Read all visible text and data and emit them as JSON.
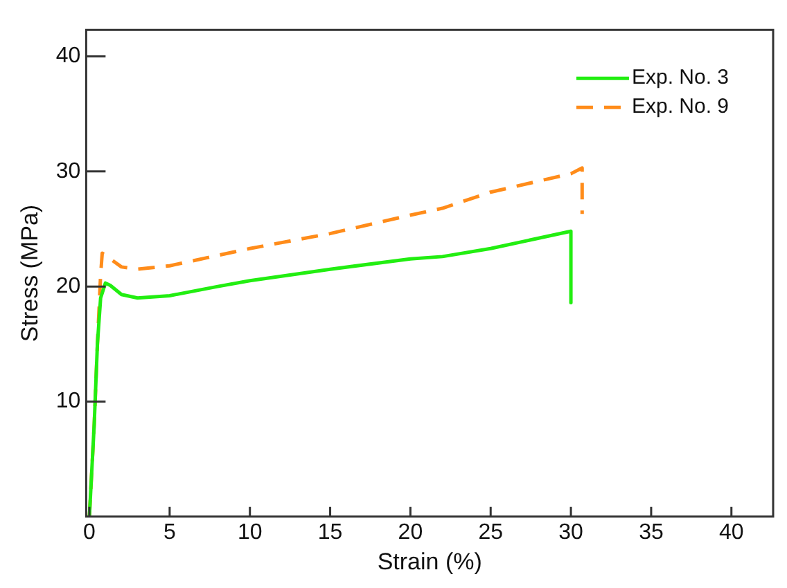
{
  "chart_data": {
    "type": "line",
    "xlabel": "Strain (%)",
    "ylabel": "Stress (MPa)",
    "xlim": [
      -0.2,
      42.6
    ],
    "ylim": [
      0,
      42.3
    ],
    "xticks": [
      0,
      5,
      10,
      15,
      20,
      25,
      30,
      35,
      40
    ],
    "yticks": [
      10,
      20,
      30,
      40
    ],
    "grid": false,
    "legend": "top right",
    "marker": "none",
    "series": [
      {
        "name": "Exp. No. 3",
        "color": "#22ee11",
        "line_style": "solid",
        "x": [
          0,
          0.3,
          0.5,
          0.7,
          1.0,
          1.3,
          2,
          3,
          5,
          8,
          10,
          15,
          20,
          22,
          25,
          30,
          30
        ],
        "values": [
          0,
          8,
          15,
          19,
          20.3,
          20.1,
          19.3,
          19.0,
          19.2,
          20,
          20.5,
          21.5,
          22.4,
          22.6,
          23.3,
          24.8,
          18.6
        ]
      },
      {
        "name": "Exp. No. 9",
        "color": "#ff8c1a",
        "line_style": "dashed",
        "x": [
          0,
          0.3,
          0.5,
          0.7,
          0.8,
          1.2,
          2,
          3,
          5,
          10,
          15,
          20,
          22,
          25,
          30,
          30.7,
          30.7
        ],
        "values": [
          0,
          8,
          15,
          21,
          22.9,
          22.5,
          21.7,
          21.5,
          21.8,
          23.3,
          24.6,
          26.2,
          26.8,
          28.2,
          29.8,
          30.3,
          26.3
        ]
      }
    ]
  }
}
